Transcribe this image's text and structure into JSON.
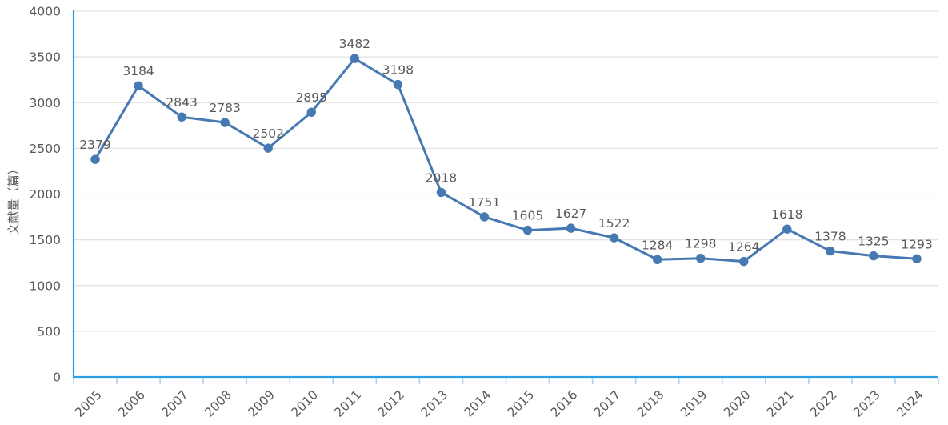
{
  "page": {
    "background": "#ffffff"
  },
  "chart_data": {
    "type": "line",
    "title": "",
    "xlabel": "",
    "ylabel": "文献量（篇）",
    "categories": [
      "2005",
      "2006",
      "2007",
      "2008",
      "2009",
      "2010",
      "2011",
      "2012",
      "2013",
      "2014",
      "2015",
      "2016",
      "2017",
      "2018",
      "2019",
      "2020",
      "2021",
      "2022",
      "2023",
      "2024"
    ],
    "series": [
      {
        "name": "文献量",
        "values": [
          2379,
          3184,
          2843,
          2783,
          2502,
          2895,
          3482,
          3198,
          2018,
          1751,
          1605,
          1627,
          1522,
          1284,
          1298,
          1264,
          1618,
          1378,
          1325,
          1293
        ]
      }
    ],
    "ylim": [
      0,
      4000
    ],
    "yticks": [
      0,
      500,
      1000,
      1500,
      2000,
      2500,
      3000,
      3500,
      4000
    ],
    "grid": true,
    "legend_position": "none",
    "data_labels": true,
    "x_label_rotation": -45
  },
  "colors": {
    "axis_line": "#2b9fe2",
    "axis_tick": "#aed3ee",
    "gridline": "#e2e2e2",
    "series_line": "#4679b2",
    "marker_fill": "#4679b2",
    "text": "#595959"
  }
}
